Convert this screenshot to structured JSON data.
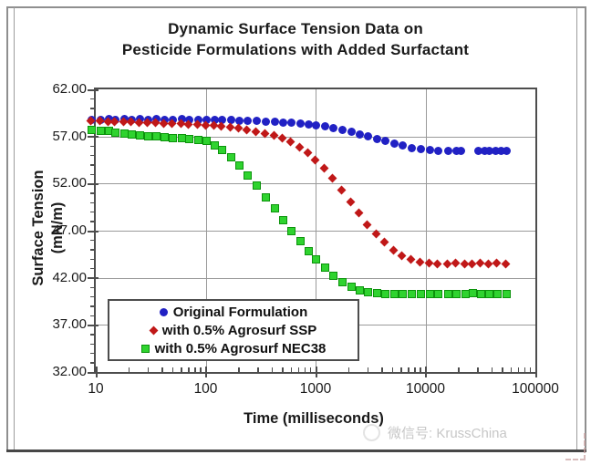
{
  "watermark": {
    "label": "微信号: KrussChina"
  },
  "chart_data": {
    "type": "scatter",
    "title_line1": "Dynamic Surface Tension Data on",
    "title_line2": "Pesticide Formulations with Added Surfactant",
    "xlabel": "Time (milliseconds)",
    "ylabel_line1": "Surface Tension",
    "ylabel_line2": "(mN/m)",
    "x_scale": "log",
    "xlim": [
      10,
      100000
    ],
    "ylim": [
      32,
      62
    ],
    "x_ticks": [
      10,
      100,
      1000,
      10000,
      100000
    ],
    "x_tick_labels": [
      "10",
      "100",
      "1000",
      "10000",
      "100000"
    ],
    "y_ticks": [
      32,
      37,
      42,
      47,
      52,
      57,
      62
    ],
    "y_tick_labels": [
      "32.00",
      "37.00",
      "42.00",
      "47.00",
      "52.00",
      "57.00",
      "62.00"
    ],
    "y_minor_step": 1,
    "grid": true,
    "axis_color": "#4d4d4d",
    "grid_color": "#9a9a9a",
    "legend_position": "lower-left-inside",
    "series": [
      {
        "name": "Original Formulation",
        "marker": "circle",
        "color": "#2121c4",
        "points": [
          [
            9,
            58.8
          ],
          [
            11,
            58.85
          ],
          [
            13,
            58.9
          ],
          [
            15,
            58.85
          ],
          [
            18,
            58.9
          ],
          [
            21,
            58.85
          ],
          [
            25,
            58.9
          ],
          [
            30,
            58.85
          ],
          [
            35,
            58.9
          ],
          [
            42,
            58.85
          ],
          [
            50,
            58.85
          ],
          [
            60,
            58.9
          ],
          [
            70,
            58.85
          ],
          [
            85,
            58.8
          ],
          [
            100,
            58.85
          ],
          [
            120,
            58.8
          ],
          [
            140,
            58.8
          ],
          [
            170,
            58.8
          ],
          [
            200,
            58.75
          ],
          [
            240,
            58.75
          ],
          [
            290,
            58.7
          ],
          [
            350,
            58.65
          ],
          [
            420,
            58.6
          ],
          [
            500,
            58.55
          ],
          [
            600,
            58.5
          ],
          [
            720,
            58.45
          ],
          [
            860,
            58.35
          ],
          [
            1000,
            58.25
          ],
          [
            1200,
            58.1
          ],
          [
            1450,
            57.95
          ],
          [
            1750,
            57.75
          ],
          [
            2100,
            57.55
          ],
          [
            2500,
            57.3
          ],
          [
            3000,
            57.05
          ],
          [
            3600,
            56.8
          ],
          [
            4300,
            56.55
          ],
          [
            5200,
            56.3
          ],
          [
            6200,
            56.05
          ],
          [
            7500,
            55.85
          ],
          [
            9000,
            55.7
          ],
          [
            11000,
            55.6
          ],
          [
            13000,
            55.55
          ],
          [
            16000,
            55.5
          ],
          [
            19000,
            55.5
          ],
          [
            21000,
            55.5
          ],
          [
            30000,
            55.5
          ],
          [
            34000,
            55.55
          ],
          [
            38000,
            55.5
          ],
          [
            43000,
            55.5
          ],
          [
            48000,
            55.5
          ],
          [
            54000,
            55.5
          ]
        ]
      },
      {
        "name": "with 0.5% Agrosurf SSP",
        "marker": "diamond",
        "color": "#c01818",
        "points": [
          [
            9,
            58.6
          ],
          [
            11,
            58.6
          ],
          [
            13,
            58.55
          ],
          [
            15,
            58.55
          ],
          [
            18,
            58.5
          ],
          [
            21,
            58.5
          ],
          [
            25,
            58.45
          ],
          [
            30,
            58.45
          ],
          [
            35,
            58.4
          ],
          [
            42,
            58.35
          ],
          [
            50,
            58.3
          ],
          [
            60,
            58.3
          ],
          [
            70,
            58.25
          ],
          [
            85,
            58.2
          ],
          [
            100,
            58.15
          ],
          [
            120,
            58.1
          ],
          [
            140,
            58.0
          ],
          [
            170,
            57.9
          ],
          [
            200,
            57.8
          ],
          [
            240,
            57.65
          ],
          [
            290,
            57.5
          ],
          [
            350,
            57.3
          ],
          [
            420,
            57.05
          ],
          [
            500,
            56.75
          ],
          [
            600,
            56.35
          ],
          [
            720,
            55.85
          ],
          [
            860,
            55.2
          ],
          [
            1000,
            54.5
          ],
          [
            1200,
            53.6
          ],
          [
            1450,
            52.5
          ],
          [
            1750,
            51.3
          ],
          [
            2100,
            50.0
          ],
          [
            2500,
            48.8
          ],
          [
            3000,
            47.6
          ],
          [
            3600,
            46.6
          ],
          [
            4300,
            45.7
          ],
          [
            5200,
            44.9
          ],
          [
            6200,
            44.3
          ],
          [
            7500,
            43.9
          ],
          [
            9000,
            43.6
          ],
          [
            11000,
            43.5
          ],
          [
            13000,
            43.4
          ],
          [
            16000,
            43.4
          ],
          [
            19000,
            43.5
          ],
          [
            23000,
            43.4
          ],
          [
            27000,
            43.4
          ],
          [
            32000,
            43.5
          ],
          [
            38000,
            43.4
          ],
          [
            45000,
            43.5
          ],
          [
            54000,
            43.4
          ]
        ]
      },
      {
        "name": "with 0.5% Agrosurf NEC38",
        "marker": "square",
        "color": "#2fd32f",
        "border_color": "#0c930c",
        "points": [
          [
            9,
            57.7
          ],
          [
            11,
            57.65
          ],
          [
            13,
            57.6
          ],
          [
            15,
            57.5
          ],
          [
            18,
            57.4
          ],
          [
            21,
            57.3
          ],
          [
            25,
            57.2
          ],
          [
            30,
            57.1
          ],
          [
            35,
            57.05
          ],
          [
            42,
            56.95
          ],
          [
            50,
            56.9
          ],
          [
            60,
            56.85
          ],
          [
            70,
            56.8
          ],
          [
            85,
            56.7
          ],
          [
            100,
            56.6
          ],
          [
            120,
            56.1
          ],
          [
            140,
            55.6
          ],
          [
            170,
            54.8
          ],
          [
            200,
            54.0
          ],
          [
            240,
            52.9
          ],
          [
            290,
            51.8
          ],
          [
            350,
            50.6
          ],
          [
            420,
            49.4
          ],
          [
            500,
            48.2
          ],
          [
            600,
            47.0
          ],
          [
            720,
            45.9
          ],
          [
            860,
            44.9
          ],
          [
            1000,
            44.0
          ],
          [
            1200,
            43.1
          ],
          [
            1450,
            42.3
          ],
          [
            1750,
            41.6
          ],
          [
            2100,
            41.1
          ],
          [
            2500,
            40.7
          ],
          [
            3000,
            40.5
          ],
          [
            3600,
            40.4
          ],
          [
            4300,
            40.3
          ],
          [
            5200,
            40.3
          ],
          [
            6200,
            40.3
          ],
          [
            7500,
            40.3
          ],
          [
            9000,
            40.3
          ],
          [
            11000,
            40.3
          ],
          [
            13000,
            40.3
          ],
          [
            16000,
            40.3
          ],
          [
            19000,
            40.3
          ],
          [
            23000,
            40.3
          ],
          [
            27000,
            40.4
          ],
          [
            32000,
            40.3
          ],
          [
            38000,
            40.3
          ],
          [
            45000,
            40.3
          ],
          [
            54000,
            40.3
          ]
        ]
      }
    ]
  }
}
